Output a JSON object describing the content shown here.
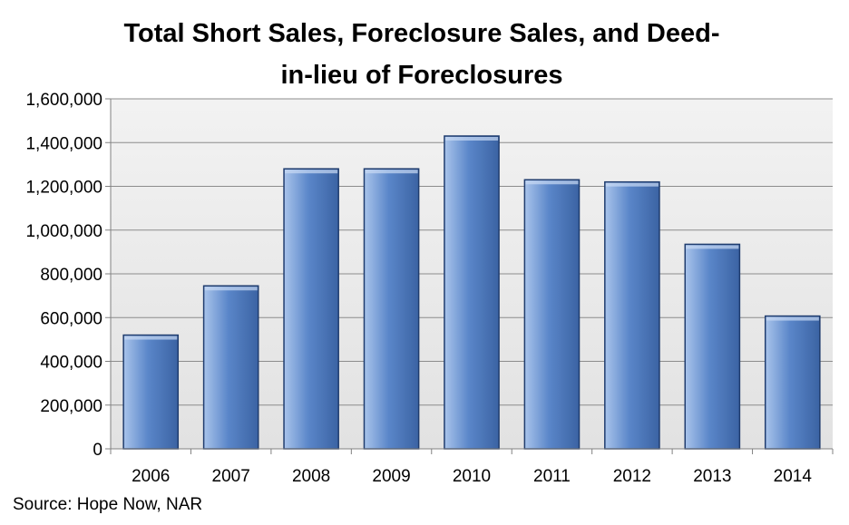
{
  "chart_data": {
    "type": "bar",
    "title": "Total Short Sales, Foreclosure Sales, and Deed-in-lieu of Foreclosures",
    "categories": [
      "2006",
      "2007",
      "2008",
      "2009",
      "2010",
      "2011",
      "2012",
      "2013",
      "2014"
    ],
    "values": [
      520000,
      745000,
      1280000,
      1280000,
      1430000,
      1230000,
      1220000,
      935000,
      607000
    ],
    "ylim": [
      0,
      1600000
    ],
    "yticks": [
      0,
      200000,
      400000,
      600000,
      800000,
      1000000,
      1200000,
      1400000,
      1600000
    ],
    "ytick_labels": [
      "0",
      "200,000",
      "400,000",
      "600,000",
      "800,000",
      "1,000,000",
      "1,200,000",
      "1,400,000",
      "1,600,000"
    ],
    "grid": true,
    "legend": "none",
    "source": "Source: Hope Now, NAR",
    "colors": {
      "bar_fill_top": "#a9c4eb",
      "bar_fill_mid": "#5a86c9",
      "bar_fill_bottom": "#3b63a3",
      "bar_edge": "#1f3c6e",
      "plot_bg": "#e9e9e9",
      "gridline": "#8c8c8c"
    }
  }
}
